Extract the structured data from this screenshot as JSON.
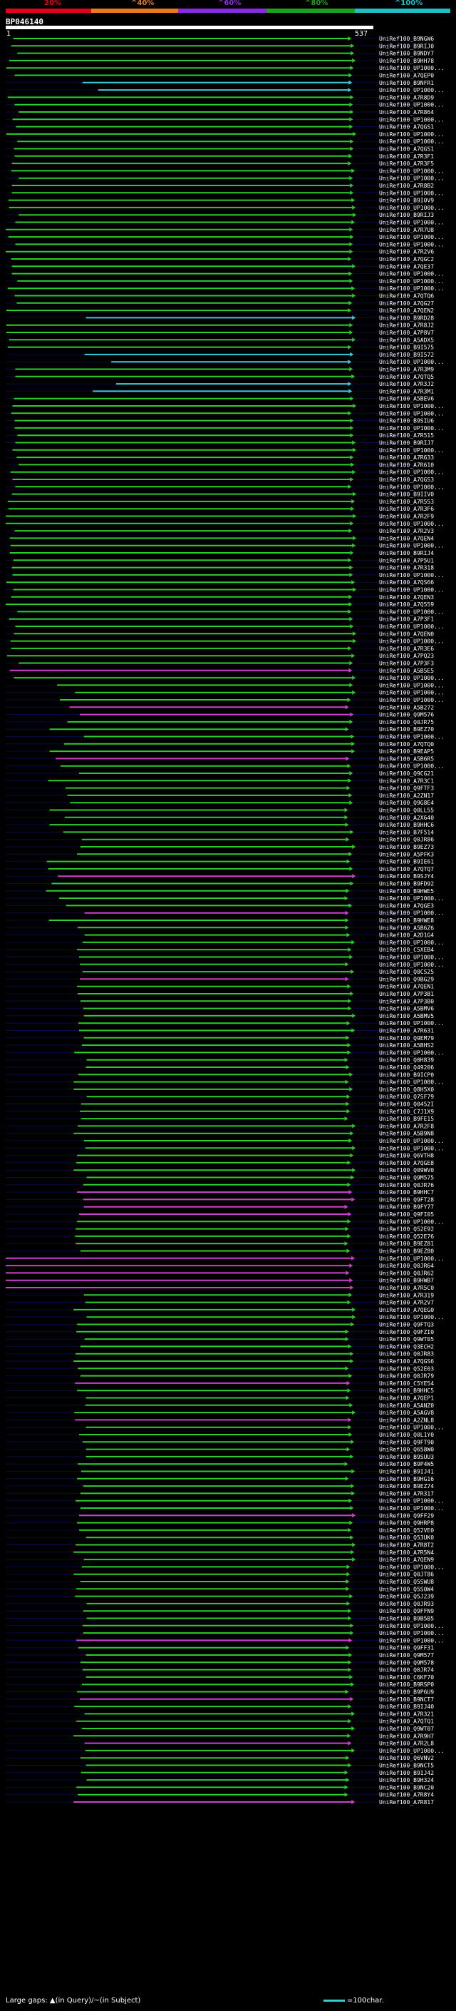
{
  "query": {
    "id": "BP046140",
    "start": "1",
    "end": "537",
    "length": 537
  },
  "colors": {
    "c20": "#e3001b",
    "c40": "#e87b1e",
    "c60": "#8a2be2",
    "c80": "#1ea01e",
    "c100": "#1ec0c8",
    "hit_green": "#2ecc2e",
    "hit_cyan": "#3ccce0",
    "hit_magenta": "#d040d0"
  },
  "score_legend": {
    "labels": [
      "20%",
      "^40%",
      "^60%",
      "^80%",
      "^100%"
    ]
  },
  "footer": {
    "left": "Large gaps: ▲(in Query)/~(in Subject)",
    "right": "=100char."
  },
  "chart_data": {
    "type": "alignment-overview",
    "title": "BP046140",
    "x_range": [
      1,
      537
    ],
    "subjects": [
      "UniRef100_B9NGW6",
      "UniRef100_B9RIJ0",
      "UniRef100_B9NDY7",
      "UniRef100_B9HH78",
      "UniRef100_UP1000...",
      "UniRef100_A7QEP0",
      "UniRef100_B9NFR1",
      "UniRef100_UP1000...",
      "UniRef100_A7R8D9",
      "UniRef100_UP1000...",
      "UniRef100_A7R864",
      "UniRef100_UP1000...",
      "UniRef100_A7QGS1",
      "UniRef100_UP1000...",
      "UniRef100_UP1000...",
      "UniRef100_A7QGS1",
      "UniRef100_A7R3F1",
      "UniRef100_A7R3F5",
      "UniRef100_UP1000...",
      "UniRef100_UP1000...",
      "UniRef100_A7R8B2",
      "UniRef100_UP1000...",
      "UniRef100_B9I0V9",
      "UniRef100_UP1000...",
      "UniRef100_B9RIJ3",
      "UniRef100_UP1000...",
      "UniRef100_A7R7U8",
      "UniRef100_UP1000...",
      "UniRef100_UP1000...",
      "UniRef100_A7R2V6",
      "UniRef100_A7QGC2",
      "UniRef100_A7QE37",
      "UniRef100_UP1000...",
      "UniRef100_UP1000...",
      "UniRef100_UP1000...",
      "UniRef100_A7QTQ6",
      "UniRef100_A7QG27",
      "UniRef100_A7QEN2",
      "UniRef100_B9RD28",
      "UniRef100_A7R8J2",
      "UniRef100_A7P8V7",
      "UniRef100_A5ADX5",
      "UniRef100_B9I575",
      "UniRef100_B9I572",
      "UniRef100_UP1000...",
      "UniRef100_A7R3M9",
      "UniRef100_A7QTQ5",
      "UniRef100_A7R3J2",
      "UniRef100_A7R3M1",
      "UniRef100_A5BEV6",
      "UniRef100_UP1000...",
      "UniRef100_UP1000...",
      "UniRef100_B9SIU6",
      "UniRef100_UP1000...",
      "UniRef100_A7R515",
      "UniRef100_B9RIJ7",
      "UniRef100_UP1000...",
      "UniRef100_A7R633",
      "UniRef100_A7R610",
      "UniRef100_UP1000...",
      "UniRef100_A7QGS3",
      "UniRef100_UP1000...",
      "UniRef100_B9IIV0",
      "UniRef100_A7R553",
      "UniRef100_A7R3F6",
      "UniRef100_A7R2F9",
      "UniRef100_UP1000...",
      "UniRef100_A7R2V3",
      "UniRef100_A7QEN4",
      "UniRef100_UP1000...",
      "UniRef100_B9RIJ4",
      "UniRef100_A7P5U1",
      "UniRef100_A7R318",
      "UniRef100_UP1000...",
      "UniRef100_A7QS66",
      "UniRef100_UP1000...",
      "UniRef100_A7QEN3",
      "UniRef100_A7Q559",
      "UniRef100_UP1000...",
      "UniRef100_A7P3F1",
      "UniRef100_UP1000...",
      "UniRef100_A7QEN0",
      "UniRef100_UP1000...",
      "UniRef100_A7R3E6",
      "UniRef100_A7PQ23",
      "UniRef100_A7P3F3",
      "UniRef100_A5B5E5",
      "UniRef100_UP1000...",
      "UniRef100_UP1000...",
      "UniRef100_UP1000...",
      "UniRef100_UP1000...",
      "UniRef100_A5B272",
      "UniRef100_Q9M576",
      "UniRef100_Q0JR75",
      "UniRef100_B9EZ70",
      "UniRef100_UP1000...",
      "UniRef100_A7QTQ0",
      "UniRef100_B9EAP5",
      "UniRef100_A5B6R5",
      "UniRef100_UP1000...",
      "UniRef100_Q9CG21",
      "UniRef100_A7R3C1",
      "UniRef100_Q9FTF3",
      "UniRef100_A2ZN17",
      "UniRef100_Q9G8E4",
      "UniRef100_Q0LL55",
      "UniRef100_A2X640",
      "UniRef100_B9HHC6",
      "UniRef100_B7F514",
      "UniRef100_Q0JR86",
      "UniRef100_B9EZ73",
      "UniRef100_A5PFK3",
      "UniRef100_B9IE61",
      "UniRef100_A7QTQ7",
      "UniRef100_B9SJY4",
      "UniRef100_B9FD92",
      "UniRef100_B9HWE5",
      "UniRef100_UP1000...",
      "UniRef100_A7QGE3",
      "UniRef100_UP1000...",
      "UniRef100_B9HWE8",
      "UniRef100_A5B6Z6",
      "UniRef100_A2D1G4",
      "UniRef100_UP1000...",
      "UniRef100_C5XEB4",
      "UniRef100_UP1000...",
      "UniRef100_UP1000...",
      "UniRef100_Q0CS25",
      "UniRef100_Q9BG29",
      "UniRef100_A7QEN1",
      "UniRef100_A7P3B1",
      "UniRef100_A7P3B0",
      "UniRef100_A5BMV6",
      "UniRef100_A5BMV5",
      "UniRef100_UP1000...",
      "UniRef100_A7R631",
      "UniRef100_Q9EM79",
      "UniRef100_A5BHS2",
      "UniRef100_UP1000...",
      "UniRef100_Q0H839",
      "UniRef100_Q49206",
      "UniRef100_B9ICP0",
      "UniRef100_UP1000...",
      "UniRef100_Q8H5X0",
      "UniRef100_Q7SF79",
      "UniRef100_Q0452I",
      "UniRef100_C7J1X9",
      "UniRef100_B9FE15",
      "UniRef100_A7R2F8",
      "UniRef100_A5B9N8",
      "UniRef100_UP1000...",
      "UniRef100_UP1000...",
      "UniRef100_Q6VTH8",
      "UniRef100_A7QGE8",
      "UniRef100_Q09WV0",
      "UniRef100_Q9M575",
      "UniRef100_Q0JR76",
      "UniRef100_B9HHC7",
      "UniRef100_Q9FT28",
      "UniRef100_B9FY77",
      "UniRef100_Q9FI05",
      "UniRef100_UP1000...",
      "UniRef100_Q52E92",
      "UniRef100_Q52E76",
      "UniRef100_B9EZ81",
      "UniRef100_B9EZ80",
      "UniRef100_UP1000...",
      "UniRef100_Q0JR64",
      "UniRef100_Q0JR62",
      "UniRef100_B9HWB7",
      "UniRef100_A7R5C0",
      "UniRef100_A7R319",
      "UniRef100_A7R2V7",
      "UniRef100_A7QEG0",
      "UniRef100_UP1000...",
      "UniRef100_Q9FTQ3",
      "UniRef100_Q9FZI0",
      "UniRef100_Q9WT05",
      "UniRef100_Q3ECH2",
      "UniRef100_Q0JR83",
      "UniRef100_A7QGS6",
      "UniRef100_Q52E03",
      "UniRef100_Q0JR79",
      "UniRef100_C5YE54",
      "UniRef100_B9HHC5",
      "UniRef100_A7QEP1",
      "UniRef100_A5ANZ0",
      "UniRef100_A5AGV8",
      "UniRef100_A2ZNL8",
      "UniRef100_UP1000...",
      "UniRef100_Q0L1Y0",
      "UniRef100_Q9FT90",
      "UniRef100_Q658W0",
      "UniRef100_B9SUU3",
      "UniRef100_B9P4W5",
      "UniRef100_B9IJ41",
      "UniRef100_B9HG16",
      "UniRef100_B9EZ74",
      "UniRef100_A7R317",
      "UniRef100_UP1000...",
      "UniRef100_UP1000...",
      "UniRef100_Q9FF29",
      "UniRef100_Q9HRP8",
      "UniRef100_Q52VE0",
      "UniRef100_Q53UK0",
      "UniRef100_A7R8T2",
      "UniRef100_A7R5N4",
      "UniRef100_A7QEN9",
      "UniRef100_UP1000...",
      "UniRef100_Q0JT86",
      "UniRef100_Q5SWU8",
      "UniRef100_Q5S0W4",
      "UniRef100_Q5J239",
      "UniRef100_Q0JR93",
      "UniRef100_Q9FFN9",
      "UniRef100_B9B5B5",
      "UniRef100_UP1000...",
      "UniRef100_UP1000...",
      "UniRef100_UP1000...",
      "UniRef100_Q9FF31",
      "UniRef100_Q9M577",
      "UniRef100_Q9M578",
      "UniRef100_Q0JR74",
      "UniRef100_C6KF70",
      "UniRef100_B9RSP0",
      "UniRef100_B9P6U9",
      "UniRef100_B9NCT7",
      "UniRef100_B9IJ40",
      "UniRef100_A7R321",
      "UniRef100_A7QTQ1",
      "UniRef100_Q9WT07",
      "UniRef100_A7R9H7",
      "UniRef100_A7R2L8",
      "UniRef100_UP1000...",
      "UniRef100_Q6VNV2",
      "UniRef100_B9NCT5",
      "UniRef100_B9IJ42",
      "UniRef100_B9H324",
      "UniRef100_B9NC20",
      "UniRef100_A7R8Y4",
      "UniRef100_A7R817"
    ],
    "hits_summary": "Query coverage of each subject hit, score color classes: 20%,40%,60%,80%,100%"
  }
}
